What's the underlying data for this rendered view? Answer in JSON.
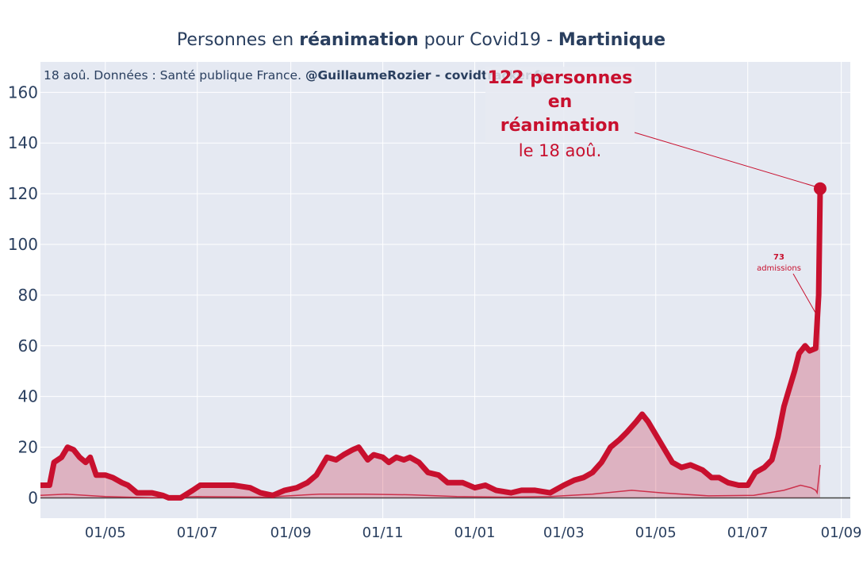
{
  "title": {
    "prefix": "Personnes en ",
    "bold1": "réanimation",
    "middle": " pour Covid19 - ",
    "bold2": "Martinique"
  },
  "subtitle": {
    "text": "18 aoû. Données : Santé publique France. ",
    "author": "@GuillaumeRozier - covidtracker.fr"
  },
  "annotation": {
    "line1": "122 personnes",
    "line2": "en réanimation",
    "line3": "le 18 aoû."
  },
  "admissions_annotation": {
    "value": "73",
    "label": "admissions"
  },
  "colors": {
    "plot_bg": "#e5e9f2",
    "line": "#c8102e",
    "fill": "rgba(200,16,46,0.25)",
    "text": "#2a3f5f"
  },
  "chart_data": {
    "type": "area",
    "x_start": "2020-03-19",
    "x_end": "2021-08-18",
    "ylim": [
      -8,
      172
    ],
    "y_ticks": [
      0,
      20,
      40,
      60,
      80,
      100,
      120,
      140,
      160
    ],
    "x_ticks": [
      {
        "date": "2020-05-01",
        "label": "01/05"
      },
      {
        "date": "2020-07-01",
        "label": "01/07"
      },
      {
        "date": "2020-09-01",
        "label": "01/09"
      },
      {
        "date": "2020-11-01",
        "label": "01/11"
      },
      {
        "date": "2021-01-01",
        "label": "01/01"
      },
      {
        "date": "2021-03-01",
        "label": "01/03"
      },
      {
        "date": "2021-05-01",
        "label": "01/05"
      },
      {
        "date": "2021-07-01",
        "label": "01/07"
      },
      {
        "date": "2021-09-01",
        "label": "01/09"
      }
    ],
    "series": [
      {
        "name": "Personnes en réanimation",
        "points": [
          [
            "2020-03-19",
            5
          ],
          [
            "2020-03-25",
            5
          ],
          [
            "2020-03-28",
            14
          ],
          [
            "2020-04-02",
            16
          ],
          [
            "2020-04-06",
            20
          ],
          [
            "2020-04-10",
            19
          ],
          [
            "2020-04-14",
            16
          ],
          [
            "2020-04-18",
            14
          ],
          [
            "2020-04-21",
            16
          ],
          [
            "2020-04-25",
            9
          ],
          [
            "2020-05-01",
            9
          ],
          [
            "2020-05-06",
            8
          ],
          [
            "2020-05-12",
            6
          ],
          [
            "2020-05-16",
            5
          ],
          [
            "2020-05-22",
            2
          ],
          [
            "2020-06-01",
            2
          ],
          [
            "2020-06-08",
            1
          ],
          [
            "2020-06-12",
            0
          ],
          [
            "2020-06-20",
            0
          ],
          [
            "2020-06-28",
            3
          ],
          [
            "2020-07-03",
            5
          ],
          [
            "2020-07-15",
            5
          ],
          [
            "2020-07-25",
            5
          ],
          [
            "2020-08-05",
            4
          ],
          [
            "2020-08-12",
            2
          ],
          [
            "2020-08-20",
            1
          ],
          [
            "2020-08-28",
            3
          ],
          [
            "2020-09-05",
            4
          ],
          [
            "2020-09-12",
            6
          ],
          [
            "2020-09-18",
            9
          ],
          [
            "2020-09-25",
            16
          ],
          [
            "2020-10-01",
            15
          ],
          [
            "2020-10-06",
            17
          ],
          [
            "2020-10-12",
            19
          ],
          [
            "2020-10-16",
            20
          ],
          [
            "2020-10-22",
            15
          ],
          [
            "2020-10-26",
            17
          ],
          [
            "2020-11-01",
            16
          ],
          [
            "2020-11-05",
            14
          ],
          [
            "2020-11-10",
            16
          ],
          [
            "2020-11-15",
            15
          ],
          [
            "2020-11-19",
            16
          ],
          [
            "2020-11-25",
            14
          ],
          [
            "2020-12-01",
            10
          ],
          [
            "2020-12-08",
            9
          ],
          [
            "2020-12-14",
            6
          ],
          [
            "2020-12-24",
            6
          ],
          [
            "2021-01-01",
            4
          ],
          [
            "2021-01-08",
            5
          ],
          [
            "2021-01-15",
            3
          ],
          [
            "2021-01-25",
            2
          ],
          [
            "2021-02-01",
            3
          ],
          [
            "2021-02-10",
            3
          ],
          [
            "2021-02-20",
            2
          ],
          [
            "2021-03-01",
            5
          ],
          [
            "2021-03-08",
            7
          ],
          [
            "2021-03-14",
            8
          ],
          [
            "2021-03-20",
            10
          ],
          [
            "2021-03-26",
            14
          ],
          [
            "2021-04-01",
            20
          ],
          [
            "2021-04-07",
            23
          ],
          [
            "2021-04-12",
            26
          ],
          [
            "2021-04-18",
            30
          ],
          [
            "2021-04-22",
            33
          ],
          [
            "2021-04-26",
            30
          ],
          [
            "2021-05-01",
            25
          ],
          [
            "2021-05-06",
            20
          ],
          [
            "2021-05-12",
            14
          ],
          [
            "2021-05-18",
            12
          ],
          [
            "2021-05-24",
            13
          ],
          [
            "2021-06-01",
            11
          ],
          [
            "2021-06-07",
            8
          ],
          [
            "2021-06-12",
            8
          ],
          [
            "2021-06-18",
            6
          ],
          [
            "2021-06-25",
            5
          ],
          [
            "2021-07-01",
            5
          ],
          [
            "2021-07-06",
            10
          ],
          [
            "2021-07-12",
            12
          ],
          [
            "2021-07-17",
            15
          ],
          [
            "2021-07-21",
            24
          ],
          [
            "2021-07-25",
            36
          ],
          [
            "2021-07-28",
            42
          ],
          [
            "2021-08-01",
            50
          ],
          [
            "2021-08-04",
            57
          ],
          [
            "2021-08-08",
            60
          ],
          [
            "2021-08-11",
            58
          ],
          [
            "2021-08-15",
            59
          ],
          [
            "2021-08-17",
            80
          ],
          [
            "2021-08-18",
            122
          ]
        ]
      },
      {
        "name": "Admissions",
        "points": [
          [
            "2020-03-19",
            1
          ],
          [
            "2020-04-05",
            1.5
          ],
          [
            "2020-05-01",
            0.5
          ],
          [
            "2020-06-01",
            0
          ],
          [
            "2020-07-01",
            0.5
          ],
          [
            "2020-08-15",
            0.3
          ],
          [
            "2020-09-20",
            1.5
          ],
          [
            "2020-10-20",
            1.5
          ],
          [
            "2020-11-20",
            1.2
          ],
          [
            "2020-12-20",
            0.5
          ],
          [
            "2021-01-20",
            0.3
          ],
          [
            "2021-02-20",
            0.5
          ],
          [
            "2021-03-20",
            1.5
          ],
          [
            "2021-04-15",
            3
          ],
          [
            "2021-05-05",
            2
          ],
          [
            "2021-06-05",
            0.8
          ],
          [
            "2021-07-05",
            1
          ],
          [
            "2021-07-25",
            3
          ],
          [
            "2021-08-05",
            5
          ],
          [
            "2021-08-12",
            4
          ],
          [
            "2021-08-15",
            3
          ],
          [
            "2021-08-16",
            2
          ],
          [
            "2021-08-18",
            13
          ]
        ]
      }
    ],
    "last_value": 122,
    "last_date": "2021-08-18"
  }
}
